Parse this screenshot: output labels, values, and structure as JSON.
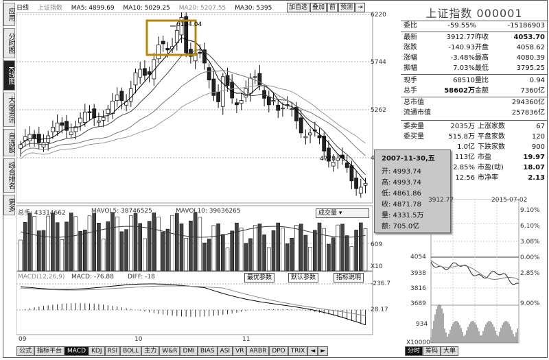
{
  "left_tabs": [
    {
      "label": "应用",
      "active": false
    },
    {
      "label": "分时图",
      "active": false
    },
    {
      "label": "K线图",
      "active": true
    },
    {
      "label": "大盘资讯",
      "active": false
    },
    {
      "label": "自选股",
      "active": false
    },
    {
      "label": "综合排名",
      "active": false
    },
    {
      "label": "更多",
      "active": false
    }
  ],
  "ma_line": {
    "period": "日线",
    "index_name": "上证指数",
    "ma5": "MA5: 4899.69",
    "ma10": "MA10: 5029.25",
    "ma20": "MA20: 5207.55",
    "ma30": "MA30: 5395"
  },
  "toolbar": {
    "add_favorite": "加自选",
    "overlay": "叠加",
    "copy": "前",
    "forecast": "预测",
    "arrow": "⇥"
  },
  "price_axis": {
    "p1": "6220",
    "p2": "5744",
    "p3": "5262",
    "p4": "4778"
  },
  "annotations": {
    "high": "6124.04",
    "low": "4778.73"
  },
  "volume": {
    "total": "总手: 43314662",
    "mavol5": "MAVOL5: 38746525",
    "mavol10": "MAVOL10: 39636265",
    "dropdown": "成交量",
    "axis_609": "609",
    "axis_x10": "X10"
  },
  "macd": {
    "header": "MACD(12,26,9)",
    "macd_val": "MACD: -76.88",
    "diff": "DIFF: -18",
    "btn_opt": "最优参数",
    "btn_default": "默认参数",
    "btn_help": "指标说明",
    "axis_top": "-236.7",
    "axis_mid": "28.17"
  },
  "xaxis": {
    "m1": "09",
    "m2": "10",
    "m3": "11"
  },
  "bottom_tabs": [
    {
      "label": "公式",
      "sel": false
    },
    {
      "label": "指标平台",
      "sel": false
    },
    {
      "label": "MACD",
      "sel": true
    },
    {
      "label": "KDJ",
      "sel": false
    },
    {
      "label": "RSI",
      "sel": false
    },
    {
      "label": "BOLL",
      "sel": false
    },
    {
      "label": "主力",
      "sel": false
    },
    {
      "label": "W&R",
      "sel": false
    },
    {
      "label": "DMI",
      "sel": false
    },
    {
      "label": "BIAS",
      "sel": false
    },
    {
      "label": "ASI",
      "sel": false
    },
    {
      "label": "VR",
      "sel": false
    },
    {
      "label": "ARBR",
      "sel": false
    },
    {
      "label": "DPO",
      "sel": false
    },
    {
      "label": "TRIX",
      "sel": false
    },
    {
      "label": "◄",
      "sel": false
    },
    {
      "label": "►",
      "sel": false
    }
  ],
  "right_bottom_tabs": [
    {
      "label": "分时",
      "sel": true
    },
    {
      "label": "筹码",
      "sel": false
    },
    {
      "label": "大单",
      "sel": false
    }
  ],
  "info": {
    "title": "上证指数 000001",
    "wei_bi_label": "委比",
    "wei_bi": "-59.55%",
    "wei_cha": "-15186903",
    "zuixin_label": "最新",
    "zuixin": "3912.77",
    "zuoshou_label": "昨收",
    "zuoshou": "4053.70",
    "zhangdie_label": "涨跌",
    "zhangdie": "-140.93",
    "kaipan_label": "开盘",
    "kaipan": "4058.62",
    "zhangfu_label": "涨幅",
    "zhangfu": "-3.48%",
    "zuigao_label": "最高",
    "zuigao": "4080.39",
    "zhenfu_label": "振幅",
    "zhenfu": "7.03%",
    "zuidi_label": "最低",
    "zuidi": "3795.25",
    "xianshou_label": "现手",
    "xianshou": "68510",
    "liangbi_label": "量比",
    "liangbi": "0.94",
    "zongshou_label": "总手",
    "zongshou": "58602万",
    "jine_label": "金额",
    "jine": "7360亿",
    "zongshizhi_label": "总市值",
    "zongshizhi": "294360亿",
    "liutong_label": "流通市值",
    "liutong": "257836亿",
    "weimai_label": "委卖量",
    "weimai": "2035万",
    "shangzhang_label": "上涨家数",
    "shangzhang": "67",
    "weimai2_label": "委买量",
    "weimai2": "515.8万",
    "pingpan_label": "平盘家数",
    "pingpan": "120",
    "r3val": "1.0亿",
    "xiadie_label": "下跌家数",
    "xiadie": "900",
    "r4val": "113亿",
    "shiying_label": "市盈",
    "shiying": "19.97",
    "r5val": "2.85%",
    "shiyingdong_label": "市盈(动)",
    "shiyingdong": "18.07",
    "r6val": "12.56",
    "shijing_label": "市净率",
    "shijing": "2.13"
  },
  "popup": {
    "date": "2007-11-30,五",
    "kai": "开: 4993.74",
    "gao": "高: 4993.74",
    "di": "低: 4861.86",
    "shou": "收: 4871.78",
    "liang": "量: 4331.5万",
    "e": "额: 705.0亿"
  },
  "intraday": {
    "price_label": "3912.77",
    "date": "2015-07-02",
    "p1": "4054",
    "p2": "3938",
    "p3": "3816",
    "p4": "3689",
    "p5": "934",
    "pct1": "6.10%",
    "pct2": "3.08%",
    "pct3": "0.00%",
    "pct4": "2.85%",
    "pct5": "9.00%",
    "pct0": "9.10%",
    "vol_axis": "X10000"
  }
}
